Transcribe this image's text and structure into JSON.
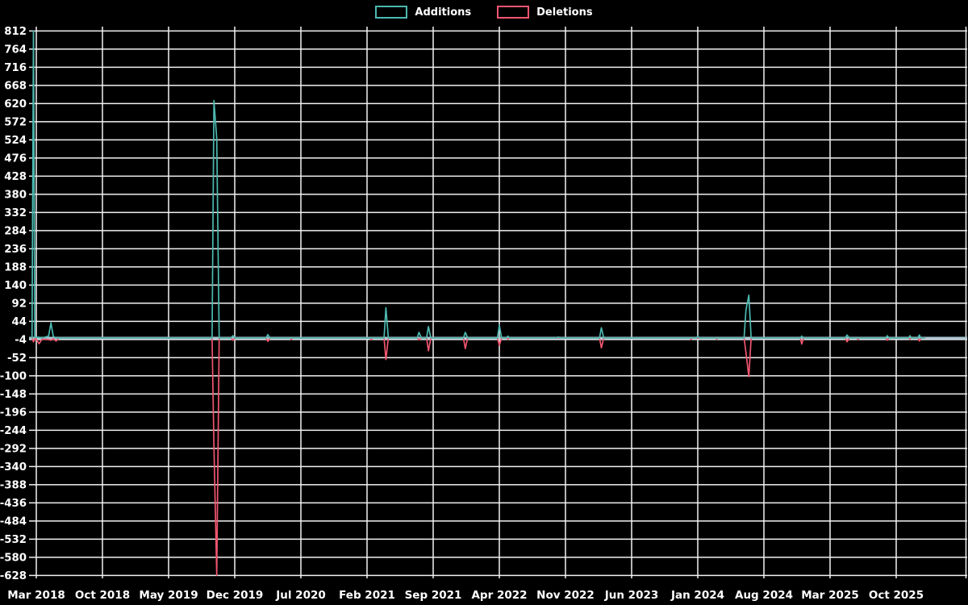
{
  "page": {
    "background": "#000000",
    "text_color": "#ffffff",
    "grid_color": "#f2f2f2",
    "zero_axis_color": "#a8c4cf"
  },
  "legend": {
    "additions_label": "Additions",
    "deletions_label": "Deletions"
  },
  "chart_data": {
    "type": "line",
    "title": "",
    "legend_position": "top-center",
    "grid": true,
    "x_axis": {
      "unit": "months since Mar 2018",
      "tick_labels": [
        "Mar 2018",
        "Oct 2018",
        "May 2019",
        "Dec 2019",
        "Jul 2020",
        "Feb 2021",
        "Sep 2021",
        "Apr 2022",
        "Nov 2022",
        "Jun 2023",
        "Jan 2024",
        "Aug 2024",
        "Mar 2025",
        "Oct 2025"
      ],
      "tick_month_offsets": [
        0,
        7,
        14,
        21,
        28,
        35,
        42,
        49,
        56,
        63,
        70,
        77,
        84,
        91
      ]
    },
    "y_axis": {
      "tick_labels": [
        812,
        764,
        716,
        668,
        620,
        572,
        524,
        476,
        428,
        380,
        332,
        284,
        236,
        188,
        140,
        92,
        44,
        -4,
        -52,
        -100,
        -148,
        -196,
        -244,
        -292,
        -340,
        -388,
        -436,
        -484,
        -532,
        -580,
        -628
      ],
      "min": -628,
      "max": 812,
      "step": 48
    },
    "series": [
      {
        "name": "Additions",
        "color": "#4cb9b0",
        "points": [
          [
            -0.45,
            0
          ],
          [
            -0.3,
            812
          ],
          [
            -0.15,
            2
          ],
          [
            0.3,
            2
          ],
          [
            0.6,
            0
          ],
          [
            1.3,
            5
          ],
          [
            1.55,
            40
          ],
          [
            1.8,
            4
          ],
          [
            2.1,
            0
          ],
          [
            18.6,
            0
          ],
          [
            18.8,
            628
          ],
          [
            19.1,
            527
          ],
          [
            19.35,
            0
          ],
          [
            20.6,
            0
          ],
          [
            20.8,
            6
          ],
          [
            21.05,
            0
          ],
          [
            24.3,
            0
          ],
          [
            24.5,
            9
          ],
          [
            24.75,
            0
          ],
          [
            35.3,
            0
          ],
          [
            36.8,
            0
          ],
          [
            37.0,
            80
          ],
          [
            37.25,
            0
          ],
          [
            40.3,
            0
          ],
          [
            40.5,
            15
          ],
          [
            40.75,
            0
          ],
          [
            41.3,
            0
          ],
          [
            41.5,
            30
          ],
          [
            41.75,
            0
          ],
          [
            45.2,
            0
          ],
          [
            45.4,
            15
          ],
          [
            45.65,
            0
          ],
          [
            48.8,
            0
          ],
          [
            49.0,
            34
          ],
          [
            49.25,
            0
          ],
          [
            49.75,
            0
          ],
          [
            49.9,
            5
          ],
          [
            50.1,
            0
          ],
          [
            55.1,
            0
          ],
          [
            55.25,
            3
          ],
          [
            55.4,
            0
          ],
          [
            59.6,
            0
          ],
          [
            59.8,
            27
          ],
          [
            60.05,
            0
          ],
          [
            69.85,
            0
          ],
          [
            70.0,
            5
          ],
          [
            70.2,
            0
          ],
          [
            74.9,
            0
          ],
          [
            75.1,
            73
          ],
          [
            75.4,
            113
          ],
          [
            75.65,
            0
          ],
          [
            80.85,
            0
          ],
          [
            81.0,
            5
          ],
          [
            81.2,
            0
          ],
          [
            85.6,
            0
          ],
          [
            85.8,
            8
          ],
          [
            86.05,
            0
          ],
          [
            89.9,
            0
          ],
          [
            90.05,
            6
          ],
          [
            90.25,
            0
          ],
          [
            92.3,
            0
          ],
          [
            92.45,
            6
          ],
          [
            92.6,
            0
          ],
          [
            93.3,
            0
          ],
          [
            93.45,
            8
          ],
          [
            93.6,
            0
          ],
          [
            94.0,
            0
          ]
        ]
      },
      {
        "name": "Deletions",
        "color": "#f0566f",
        "points": [
          [
            -0.45,
            0
          ],
          [
            -0.3,
            -10
          ],
          [
            -0.1,
            0
          ],
          [
            0.3,
            -15
          ],
          [
            0.6,
            -3
          ],
          [
            1.3,
            -4
          ],
          [
            1.55,
            -6
          ],
          [
            1.8,
            -2
          ],
          [
            2.1,
            -8
          ],
          [
            2.4,
            0
          ],
          [
            18.6,
            0
          ],
          [
            18.8,
            -285
          ],
          [
            19.1,
            -628
          ],
          [
            19.35,
            0
          ],
          [
            20.6,
            0
          ],
          [
            20.8,
            -6
          ],
          [
            21.05,
            0
          ],
          [
            24.3,
            0
          ],
          [
            24.5,
            -9
          ],
          [
            24.75,
            0
          ],
          [
            26.85,
            0
          ],
          [
            27.0,
            -4
          ],
          [
            27.15,
            0
          ],
          [
            35.3,
            0
          ],
          [
            35.45,
            -5
          ],
          [
            35.6,
            0
          ],
          [
            36.8,
            0
          ],
          [
            37.0,
            -57
          ],
          [
            37.25,
            0
          ],
          [
            40.3,
            0
          ],
          [
            40.5,
            -5
          ],
          [
            40.75,
            0
          ],
          [
            41.3,
            0
          ],
          [
            41.5,
            -34
          ],
          [
            41.75,
            0
          ],
          [
            45.2,
            0
          ],
          [
            45.4,
            -28
          ],
          [
            45.65,
            0
          ],
          [
            48.8,
            0
          ],
          [
            49.0,
            -19
          ],
          [
            49.25,
            0
          ],
          [
            49.75,
            0
          ],
          [
            49.9,
            -3
          ],
          [
            50.1,
            0
          ],
          [
            59.6,
            0
          ],
          [
            59.8,
            -26
          ],
          [
            60.05,
            0
          ],
          [
            69.15,
            0
          ],
          [
            69.3,
            -4
          ],
          [
            69.45,
            0
          ],
          [
            71.85,
            0
          ],
          [
            72.0,
            -3
          ],
          [
            72.15,
            0
          ],
          [
            74.9,
            0
          ],
          [
            75.1,
            -38
          ],
          [
            75.4,
            -102
          ],
          [
            75.65,
            0
          ],
          [
            80.85,
            0
          ],
          [
            81.0,
            -16
          ],
          [
            81.2,
            0
          ],
          [
            85.6,
            0
          ],
          [
            85.8,
            -10
          ],
          [
            86.05,
            0
          ],
          [
            86.8,
            0
          ],
          [
            86.95,
            -4
          ],
          [
            87.1,
            0
          ],
          [
            89.9,
            0
          ],
          [
            90.05,
            -6
          ],
          [
            90.25,
            0
          ],
          [
            92.3,
            0
          ],
          [
            92.45,
            -3
          ],
          [
            92.6,
            0
          ],
          [
            93.3,
            0
          ],
          [
            93.45,
            -8
          ],
          [
            93.6,
            0
          ],
          [
            94.0,
            0
          ]
        ]
      }
    ]
  }
}
